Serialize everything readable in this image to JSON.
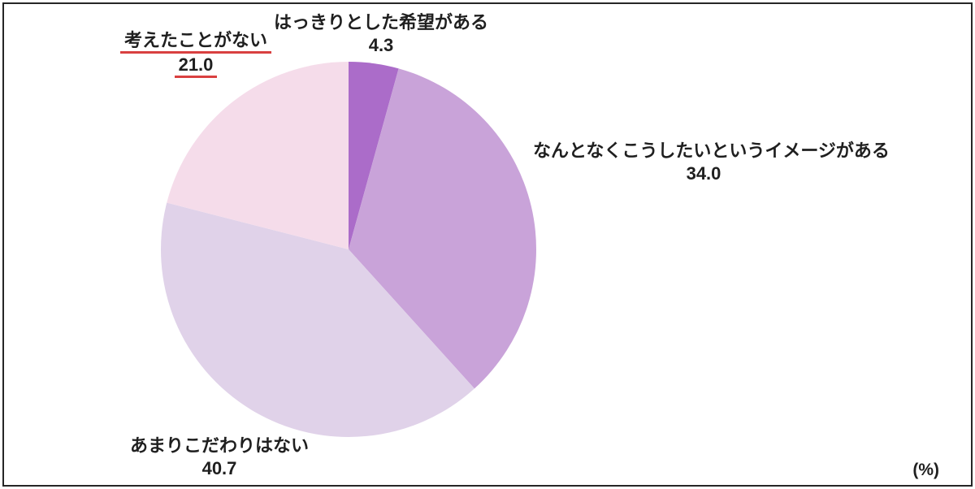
{
  "chart_data": {
    "type": "pie",
    "title": "",
    "unit_label": "(%)",
    "start_angle_deg": 0,
    "direction": "clockwise",
    "total": 100.0,
    "slices": [
      {
        "label": "はっきりとした希望がある",
        "value": 4.3,
        "display": "4.3",
        "color": "#ab6cc9",
        "emphasized": false
      },
      {
        "label": "なんとなくこうしたいというイメージがある",
        "value": 34.0,
        "display": "34.0",
        "color": "#c9a3d9",
        "emphasized": false
      },
      {
        "label": "あまりこだわりはない",
        "value": 40.7,
        "display": "40.7",
        "color": "#e0d2e9",
        "emphasized": false
      },
      {
        "label": "考えたことがない",
        "value": 21.0,
        "display": "21.0",
        "color": "#f5dcea",
        "emphasized": true
      }
    ],
    "emphasis_underline_color": "#d94040",
    "legend_position": "none",
    "labels_outside": true
  }
}
